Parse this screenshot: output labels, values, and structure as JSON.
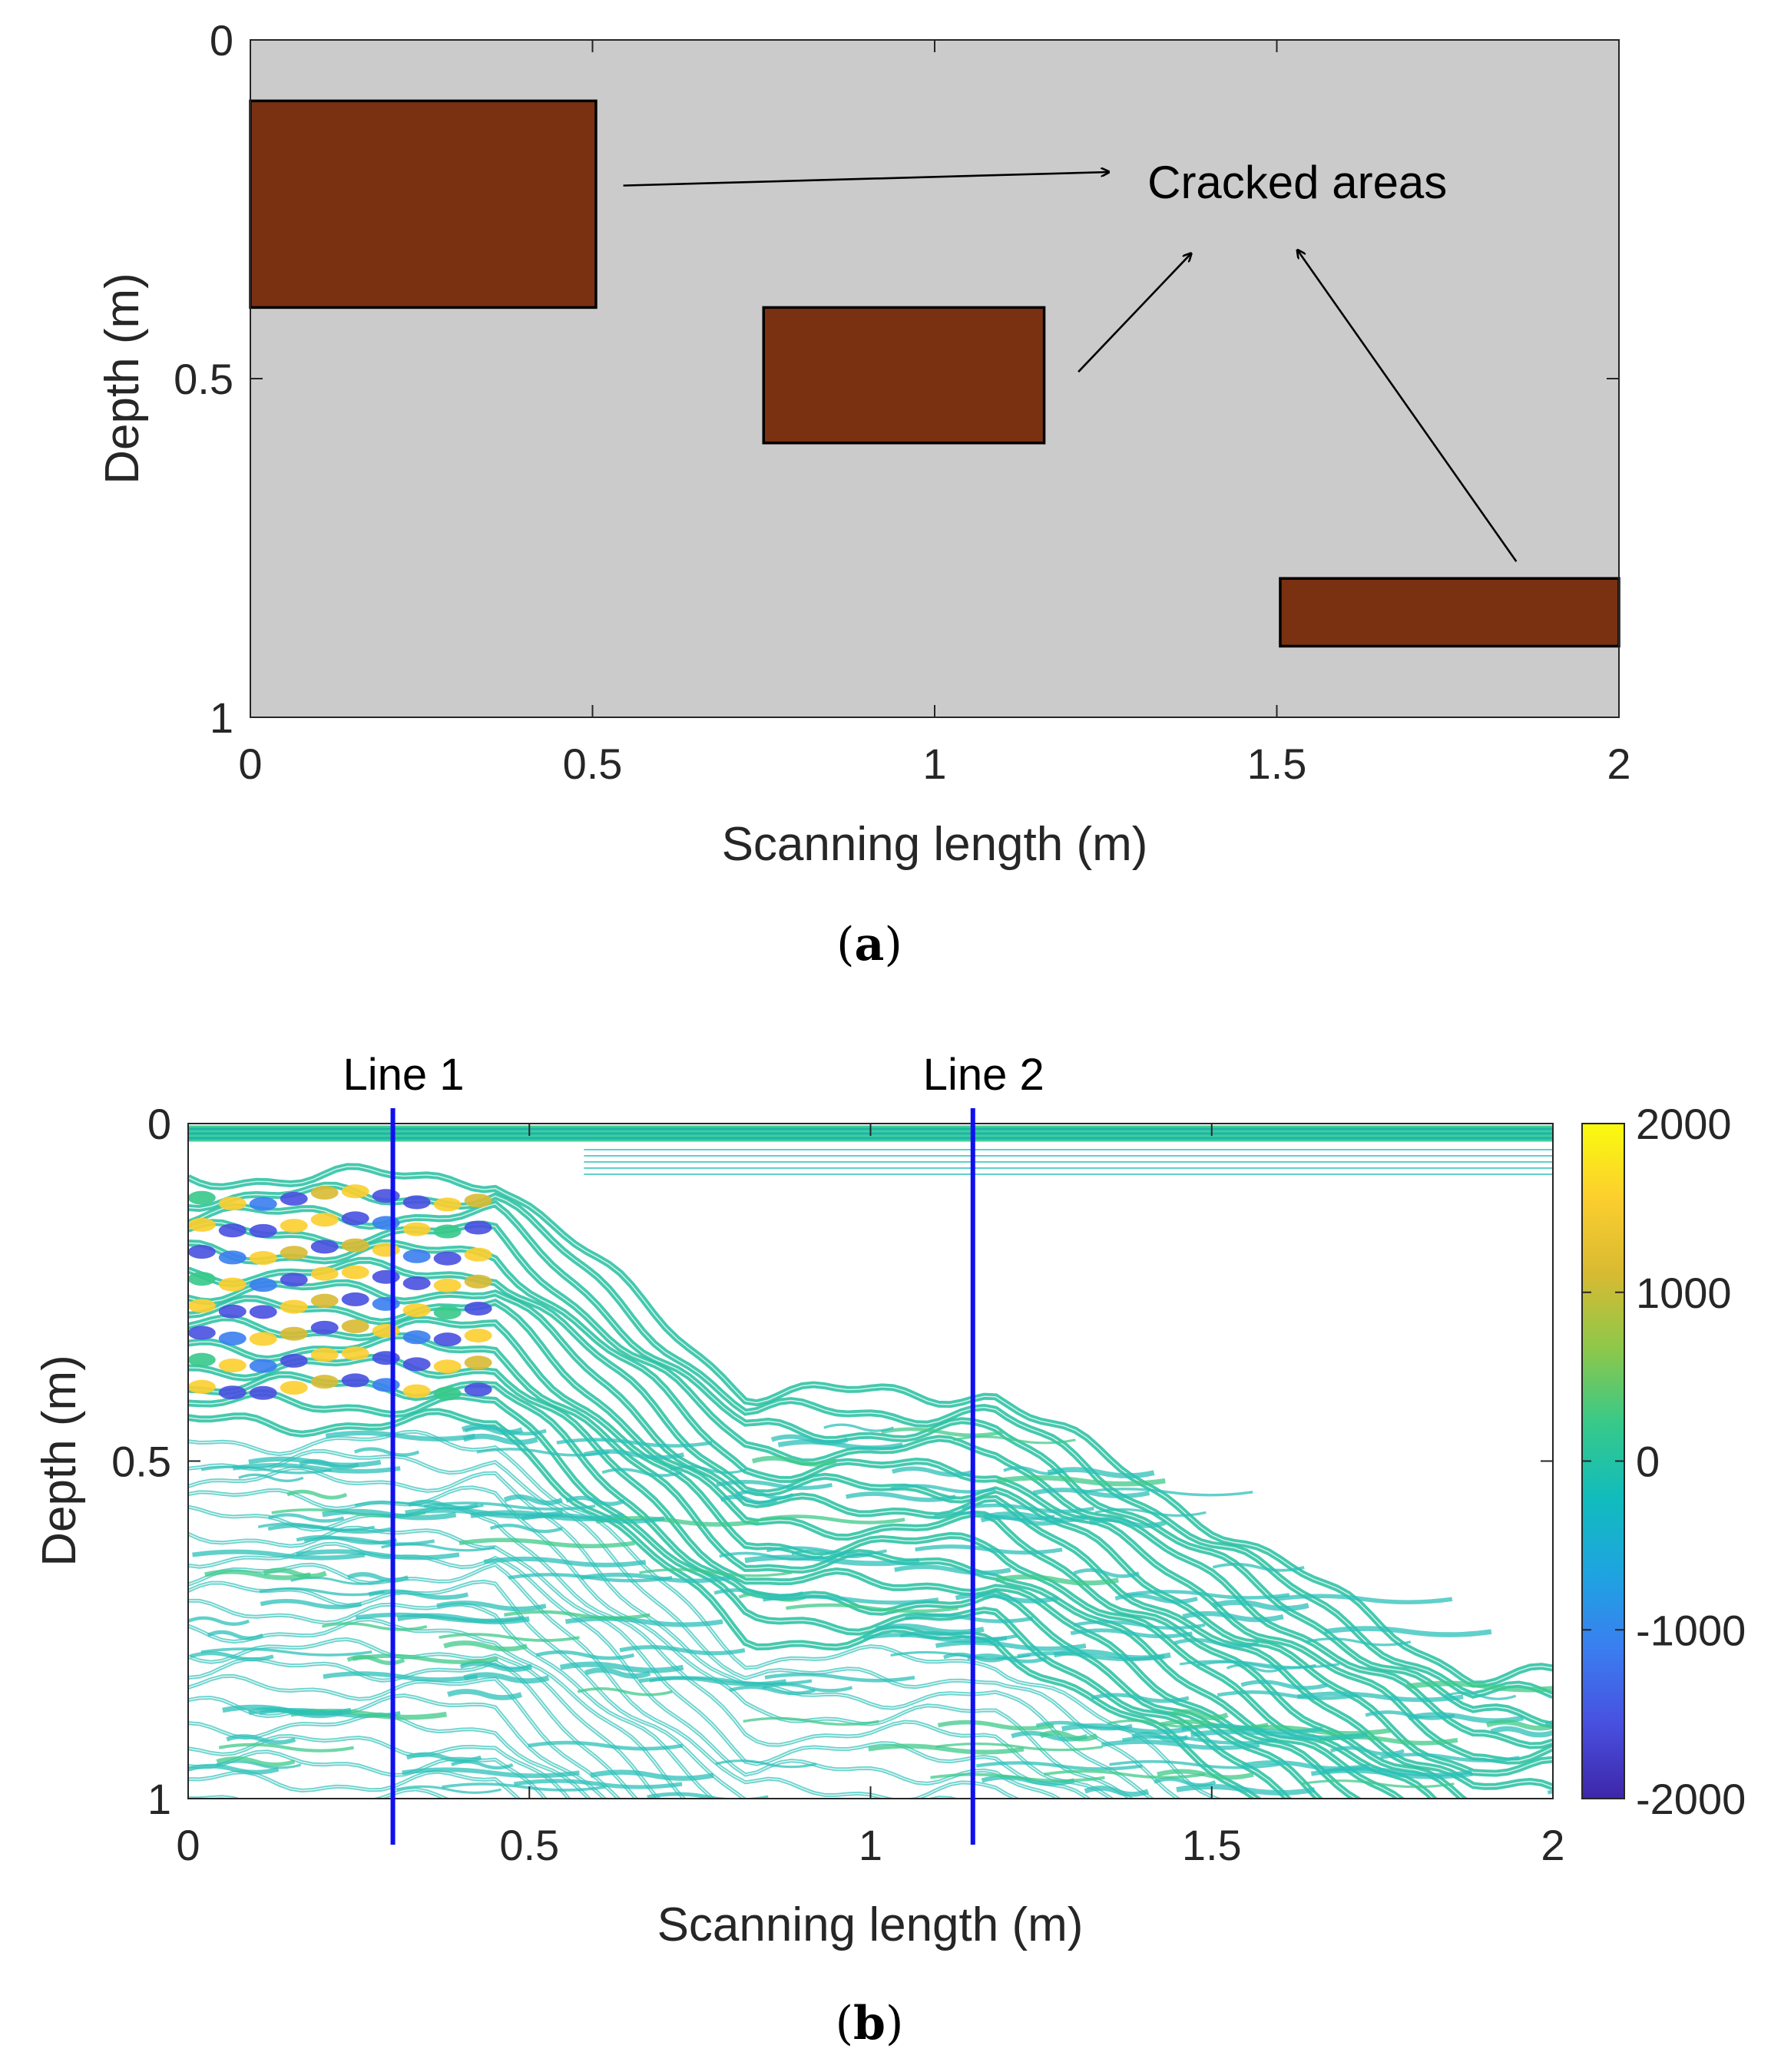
{
  "colors": {
    "background_panel_a": "#cbcbcb",
    "crack_fill": "#7a3112",
    "crack_edge": "#000000",
    "arrow": "#000000",
    "scan_line": "#1010ee",
    "axis": "#262626"
  },
  "chart_data": [
    {
      "panel": "a",
      "type": "schematic",
      "caption_letter": "a",
      "xlabel": "Scanning length (m)",
      "ylabel": "Depth (m)",
      "xlim": [
        0,
        2
      ],
      "ylim": [
        0,
        1
      ],
      "y_reversed": true,
      "xticks": [
        0,
        0.5,
        1,
        1.5,
        2
      ],
      "xtick_labels": [
        "0",
        "0.5",
        "1",
        "1.5",
        "2"
      ],
      "yticks": [
        0,
        0.5,
        1
      ],
      "ytick_labels": [
        "0",
        "0.5",
        "1"
      ],
      "annotation": "Cracked areas",
      "crack_regions": [
        {
          "x0": 0.0,
          "x1": 0.505,
          "y0": 0.09,
          "y1": 0.395
        },
        {
          "x0": 0.75,
          "x1": 1.16,
          "y0": 0.395,
          "y1": 0.595
        },
        {
          "x0": 1.505,
          "x1": 2.0,
          "y0": 0.795,
          "y1": 0.895
        }
      ],
      "arrows": [
        {
          "from": [
            0.545,
            0.215
          ],
          "to": [
            1.255,
            0.195
          ]
        },
        {
          "from": [
            1.21,
            0.49
          ],
          "to": [
            1.375,
            0.315
          ]
        },
        {
          "from": [
            1.85,
            0.77
          ],
          "to": [
            1.53,
            0.31
          ]
        }
      ]
    },
    {
      "panel": "b",
      "type": "contour",
      "caption_letter": "b",
      "xlabel": "Scanning length (m)",
      "ylabel": "Depth (m)",
      "xlim": [
        0,
        2
      ],
      "ylim": [
        0,
        1
      ],
      "y_reversed": true,
      "xticks": [
        0,
        0.5,
        1,
        1.5,
        2
      ],
      "xtick_labels": [
        "0",
        "0.5",
        "1",
        "1.5",
        "2"
      ],
      "yticks": [
        0,
        0.5,
        1
      ],
      "ytick_labels": [
        "0",
        "0.5",
        "1"
      ],
      "colorbar": {
        "range": [
          -2000,
          2000
        ],
        "ticks": [
          2000,
          1000,
          0,
          -1000,
          -2000
        ],
        "tick_labels": [
          "2000",
          "1000",
          "0",
          "-1000",
          "-2000"
        ],
        "colormap": [
          "#3e26a8",
          "#4850e0",
          "#3a7ef0",
          "#1ea4e0",
          "#11bcbd",
          "#36c98a",
          "#8dc84a",
          "#d8ba32",
          "#fcce2e",
          "#f9fb0e"
        ]
      },
      "scan_lines": [
        {
          "label": "Line 1",
          "x": 0.3
        },
        {
          "label": "Line 2",
          "x": 1.15
        }
      ],
      "reflector_tops": [
        {
          "x0": 0.0,
          "x1": 0.5,
          "depth": 0.08
        },
        {
          "x0": 0.75,
          "x1": 1.16,
          "depth": 0.4
        },
        {
          "x0": 1.5,
          "x1": 2.0,
          "depth": 0.8
        }
      ],
      "surface_band_depth": 0.0
    }
  ]
}
